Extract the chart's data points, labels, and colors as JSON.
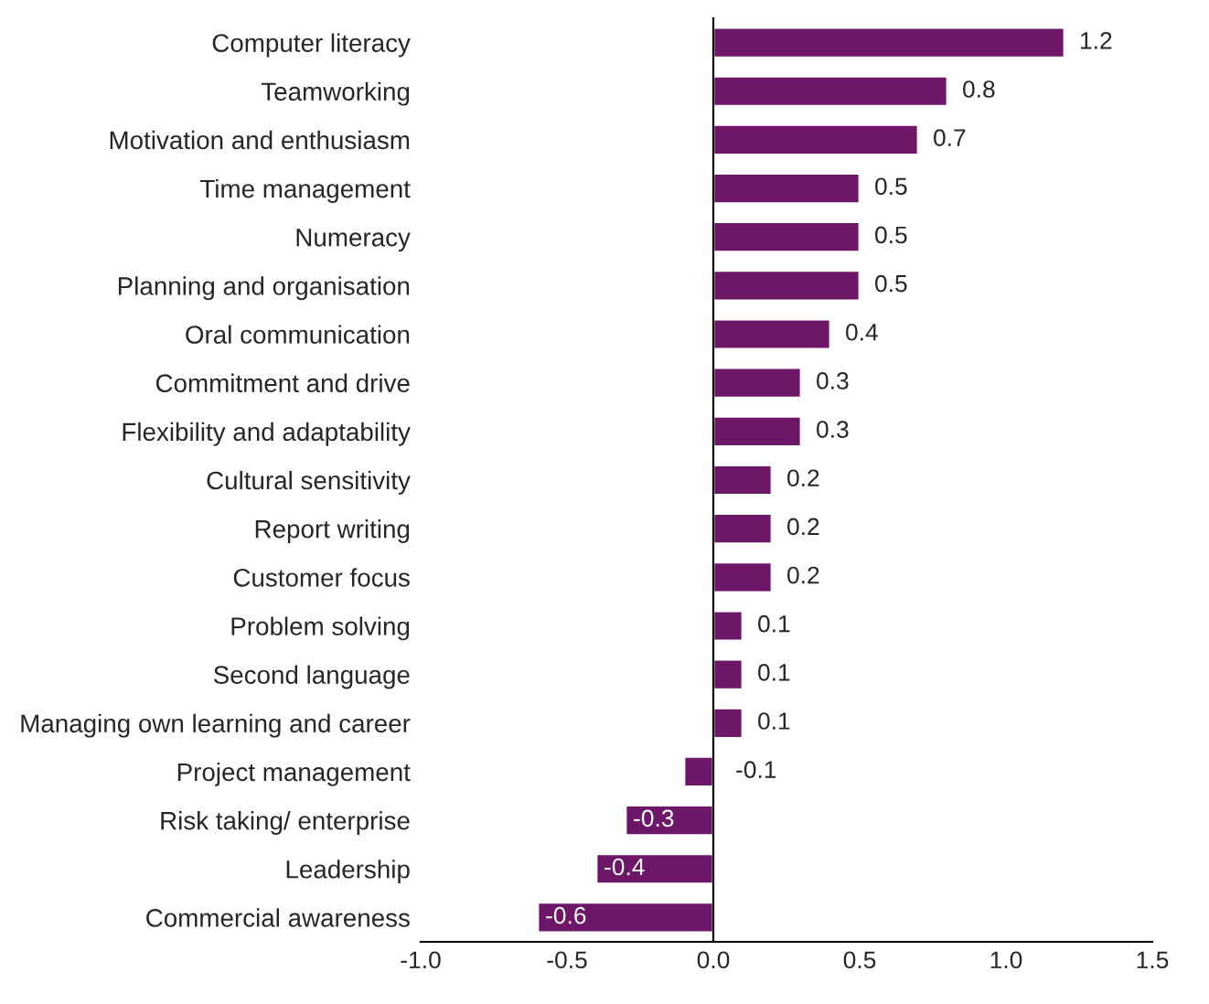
{
  "chart_data": {
    "type": "bar",
    "orientation": "horizontal",
    "data_labels": true,
    "legend": false,
    "categories": [
      "Computer literacy",
      "Teamworking",
      "Motivation and enthusiasm",
      "Time management",
      "Numeracy",
      "Planning and organisation",
      "Oral communication",
      "Commitment and drive",
      "Flexibility and adaptability",
      "Cultural sensitivity",
      "Report writing",
      "Customer focus",
      "Problem solving",
      "Second language",
      "Managing own learning and career",
      "Project management",
      "Risk taking/ enterprise",
      "Leadership",
      "Commercial awareness"
    ],
    "values": [
      1.2,
      0.8,
      0.7,
      0.5,
      0.5,
      0.5,
      0.4,
      0.3,
      0.3,
      0.2,
      0.2,
      0.2,
      0.1,
      0.1,
      0.1,
      -0.1,
      -0.3,
      -0.4,
      -0.6
    ],
    "color": "#6e1768",
    "xlim": [
      -1.0,
      1.5
    ],
    "xticks": [
      {
        "value": -1,
        "label": "-1.0"
      },
      -0.5,
      {
        "value": 0,
        "label": "0.0"
      },
      0.5,
      {
        "value": 1,
        "label": "1.0"
      },
      1.5
    ]
  }
}
